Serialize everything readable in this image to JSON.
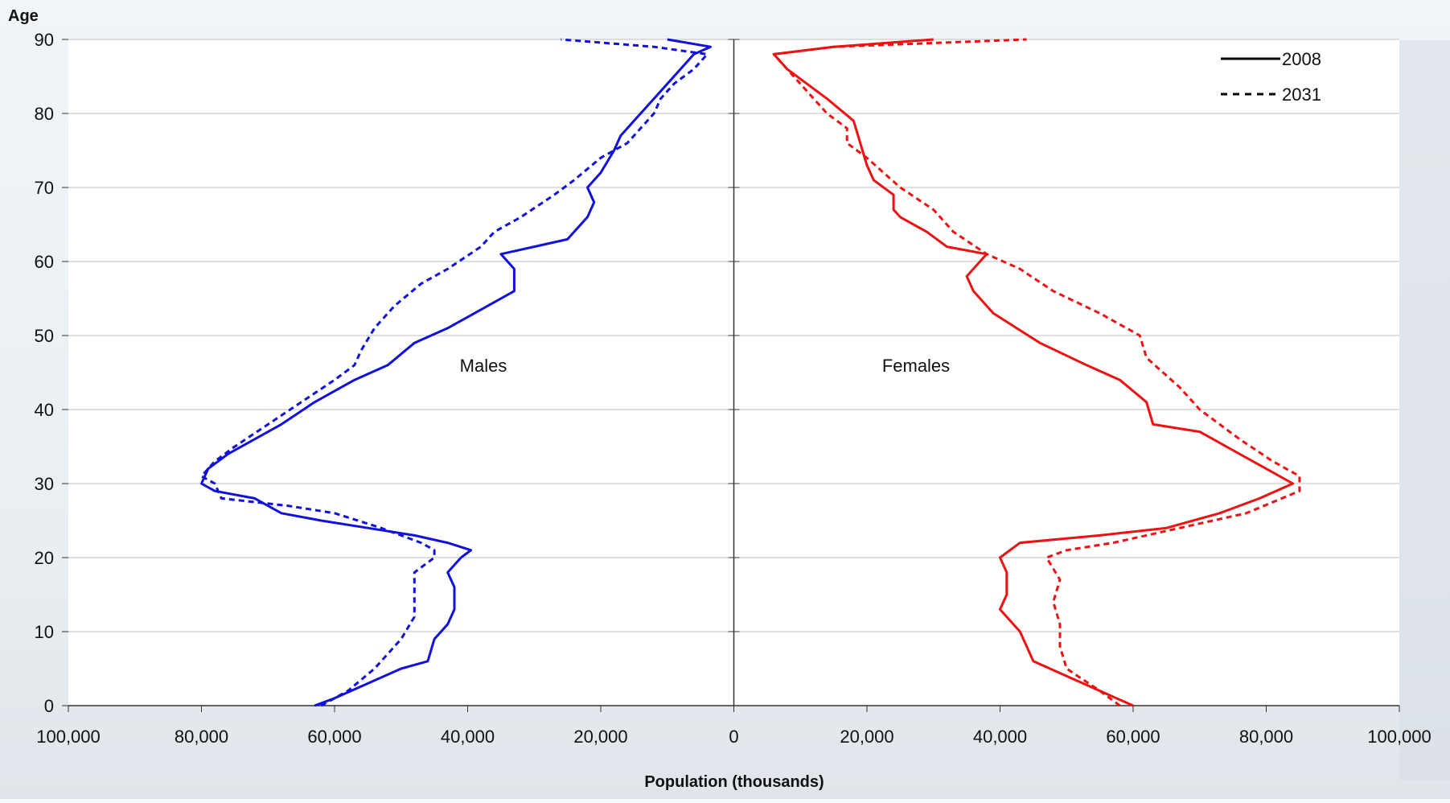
{
  "chart_data": {
    "type": "line",
    "ylabel": "Age",
    "xlabel": "Population (thousands)",
    "panel_labels": {
      "left": "Males",
      "right": "Females"
    },
    "x_ticks": [
      "100,000",
      "80,000",
      "60,000",
      "40,000",
      "20,000",
      "0",
      "20,000",
      "40,000",
      "60,000",
      "80,000",
      "100,000"
    ],
    "y_ticks": [
      "0",
      "10",
      "20",
      "30",
      "40",
      "50",
      "60",
      "70",
      "80",
      "90"
    ],
    "xlim": [
      -100000,
      100000
    ],
    "ylim": [
      0,
      90
    ],
    "grid": true,
    "legend": {
      "position": "top-right",
      "entries": [
        "2008",
        "2031"
      ]
    },
    "colors": {
      "male": "#1111dd",
      "female": "#ee1111",
      "legend": "#000000",
      "grid": "#bfbfbf",
      "axis": "#333333"
    },
    "series": [
      {
        "name": "2008",
        "sex": "male",
        "style": "solid",
        "points": [
          [
            63000,
            0
          ],
          [
            60000,
            1
          ],
          [
            55000,
            3
          ],
          [
            50000,
            5
          ],
          [
            46000,
            6
          ],
          [
            45000,
            9
          ],
          [
            43000,
            11
          ],
          [
            42000,
            13
          ],
          [
            42000,
            16
          ],
          [
            43000,
            18
          ],
          [
            41000,
            20
          ],
          [
            39500,
            21
          ],
          [
            43000,
            22
          ],
          [
            48000,
            23
          ],
          [
            55000,
            24
          ],
          [
            62000,
            25
          ],
          [
            68000,
            26
          ],
          [
            72000,
            28
          ],
          [
            78000,
            29
          ],
          [
            80000,
            30
          ],
          [
            79000,
            32
          ],
          [
            76000,
            34
          ],
          [
            72000,
            36
          ],
          [
            68000,
            38
          ],
          [
            63000,
            41
          ],
          [
            57000,
            44
          ],
          [
            52000,
            46
          ],
          [
            48000,
            49
          ],
          [
            43000,
            51
          ],
          [
            39000,
            53
          ],
          [
            33000,
            56
          ],
          [
            33000,
            59
          ],
          [
            35000,
            61
          ],
          [
            30000,
            62
          ],
          [
            25000,
            63
          ],
          [
            22000,
            66
          ],
          [
            21000,
            68
          ],
          [
            22000,
            70
          ],
          [
            20000,
            72
          ],
          [
            18000,
            75
          ],
          [
            17000,
            77
          ],
          [
            14000,
            80
          ],
          [
            11000,
            83
          ],
          [
            8000,
            86
          ],
          [
            6000,
            88
          ],
          [
            3500,
            89
          ],
          [
            10000,
            90
          ]
        ]
      },
      {
        "name": "2031",
        "sex": "male",
        "style": "dashed",
        "points": [
          [
            62000,
            0
          ],
          [
            58000,
            2
          ],
          [
            54000,
            5
          ],
          [
            50000,
            9
          ],
          [
            48000,
            12
          ],
          [
            48000,
            15
          ],
          [
            48000,
            18
          ],
          [
            45000,
            20
          ],
          [
            45000,
            21
          ],
          [
            47000,
            22
          ],
          [
            53000,
            24
          ],
          [
            60000,
            26
          ],
          [
            67000,
            27
          ],
          [
            77000,
            28
          ],
          [
            78000,
            30
          ],
          [
            80000,
            31
          ],
          [
            78000,
            33
          ],
          [
            75000,
            35
          ],
          [
            70000,
            38
          ],
          [
            65000,
            41
          ],
          [
            60000,
            44
          ],
          [
            57000,
            46
          ],
          [
            56000,
            48
          ],
          [
            54000,
            51
          ],
          [
            51000,
            54
          ],
          [
            47000,
            57
          ],
          [
            43000,
            59
          ],
          [
            38000,
            62
          ],
          [
            36000,
            64
          ],
          [
            32000,
            66
          ],
          [
            27000,
            69
          ],
          [
            24000,
            71
          ],
          [
            20000,
            74
          ],
          [
            16000,
            76
          ],
          [
            14000,
            78
          ],
          [
            12000,
            80
          ],
          [
            11000,
            82
          ],
          [
            9000,
            84
          ],
          [
            6000,
            86
          ],
          [
            4000,
            88
          ],
          [
            12000,
            89
          ],
          [
            26000,
            90
          ]
        ]
      },
      {
        "name": "2008",
        "sex": "female",
        "style": "solid",
        "points": [
          [
            60000,
            0
          ],
          [
            55000,
            2
          ],
          [
            50000,
            4
          ],
          [
            45000,
            6
          ],
          [
            44000,
            8
          ],
          [
            43000,
            10
          ],
          [
            40000,
            13
          ],
          [
            41000,
            15
          ],
          [
            41000,
            18
          ],
          [
            40000,
            20
          ],
          [
            43000,
            22
          ],
          [
            55000,
            23
          ],
          [
            65000,
            24
          ],
          [
            73000,
            26
          ],
          [
            79000,
            28
          ],
          [
            84000,
            30
          ],
          [
            80000,
            32
          ],
          [
            74000,
            35
          ],
          [
            70000,
            37
          ],
          [
            63000,
            38
          ],
          [
            62000,
            41
          ],
          [
            58000,
            44
          ],
          [
            53000,
            46
          ],
          [
            46000,
            49
          ],
          [
            39000,
            53
          ],
          [
            36000,
            56
          ],
          [
            35000,
            58
          ],
          [
            38000,
            61
          ],
          [
            32000,
            62
          ],
          [
            29000,
            64
          ],
          [
            25000,
            66
          ],
          [
            24000,
            67
          ],
          [
            24000,
            69
          ],
          [
            21000,
            71
          ],
          [
            20000,
            73
          ],
          [
            19000,
            76
          ],
          [
            18000,
            79
          ],
          [
            14000,
            82
          ],
          [
            11000,
            84
          ],
          [
            8000,
            86
          ],
          [
            6000,
            88
          ],
          [
            15000,
            89
          ],
          [
            30000,
            90
          ]
        ]
      },
      {
        "name": "2031",
        "sex": "female",
        "style": "dashed",
        "points": [
          [
            58000,
            0
          ],
          [
            55000,
            2
          ],
          [
            50000,
            5
          ],
          [
            49000,
            8
          ],
          [
            49000,
            11
          ],
          [
            48000,
            14
          ],
          [
            49000,
            17
          ],
          [
            47000,
            20
          ],
          [
            50000,
            21
          ],
          [
            57000,
            22
          ],
          [
            67000,
            24
          ],
          [
            77000,
            26
          ],
          [
            85000,
            29
          ],
          [
            85000,
            31
          ],
          [
            81000,
            33
          ],
          [
            76000,
            36
          ],
          [
            70000,
            40
          ],
          [
            67000,
            43
          ],
          [
            62000,
            47
          ],
          [
            61000,
            50
          ],
          [
            55000,
            53
          ],
          [
            48000,
            56
          ],
          [
            43000,
            59
          ],
          [
            38000,
            61
          ],
          [
            33000,
            64
          ],
          [
            30000,
            67
          ],
          [
            25000,
            70
          ],
          [
            20000,
            74
          ],
          [
            17000,
            76
          ],
          [
            17000,
            78
          ],
          [
            14000,
            80
          ],
          [
            11000,
            83
          ],
          [
            8000,
            86
          ],
          [
            6000,
            88
          ],
          [
            15000,
            89
          ],
          [
            44000,
            90
          ]
        ]
      }
    ]
  }
}
